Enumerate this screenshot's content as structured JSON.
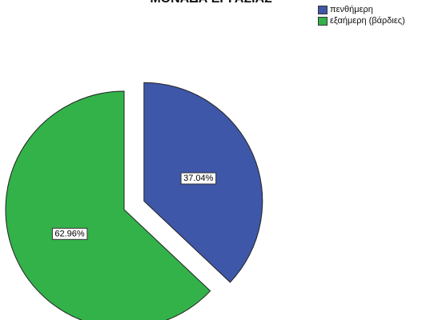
{
  "chart_data": {
    "type": "pie",
    "title": "ΜΟΝΑΔΑ ΕΡΓΑΣΙΑΣ",
    "legend_position": "top-right",
    "slices": [
      {
        "label": "πενθήμερη",
        "value": 37.04,
        "value_label": "37.04%",
        "color": "#3e57a8",
        "exploded": true
      },
      {
        "label": "εξαήμερη (βάρδιες)",
        "value": 62.96,
        "value_label": "62.96%",
        "color": "#33b24a",
        "exploded": false
      }
    ]
  }
}
